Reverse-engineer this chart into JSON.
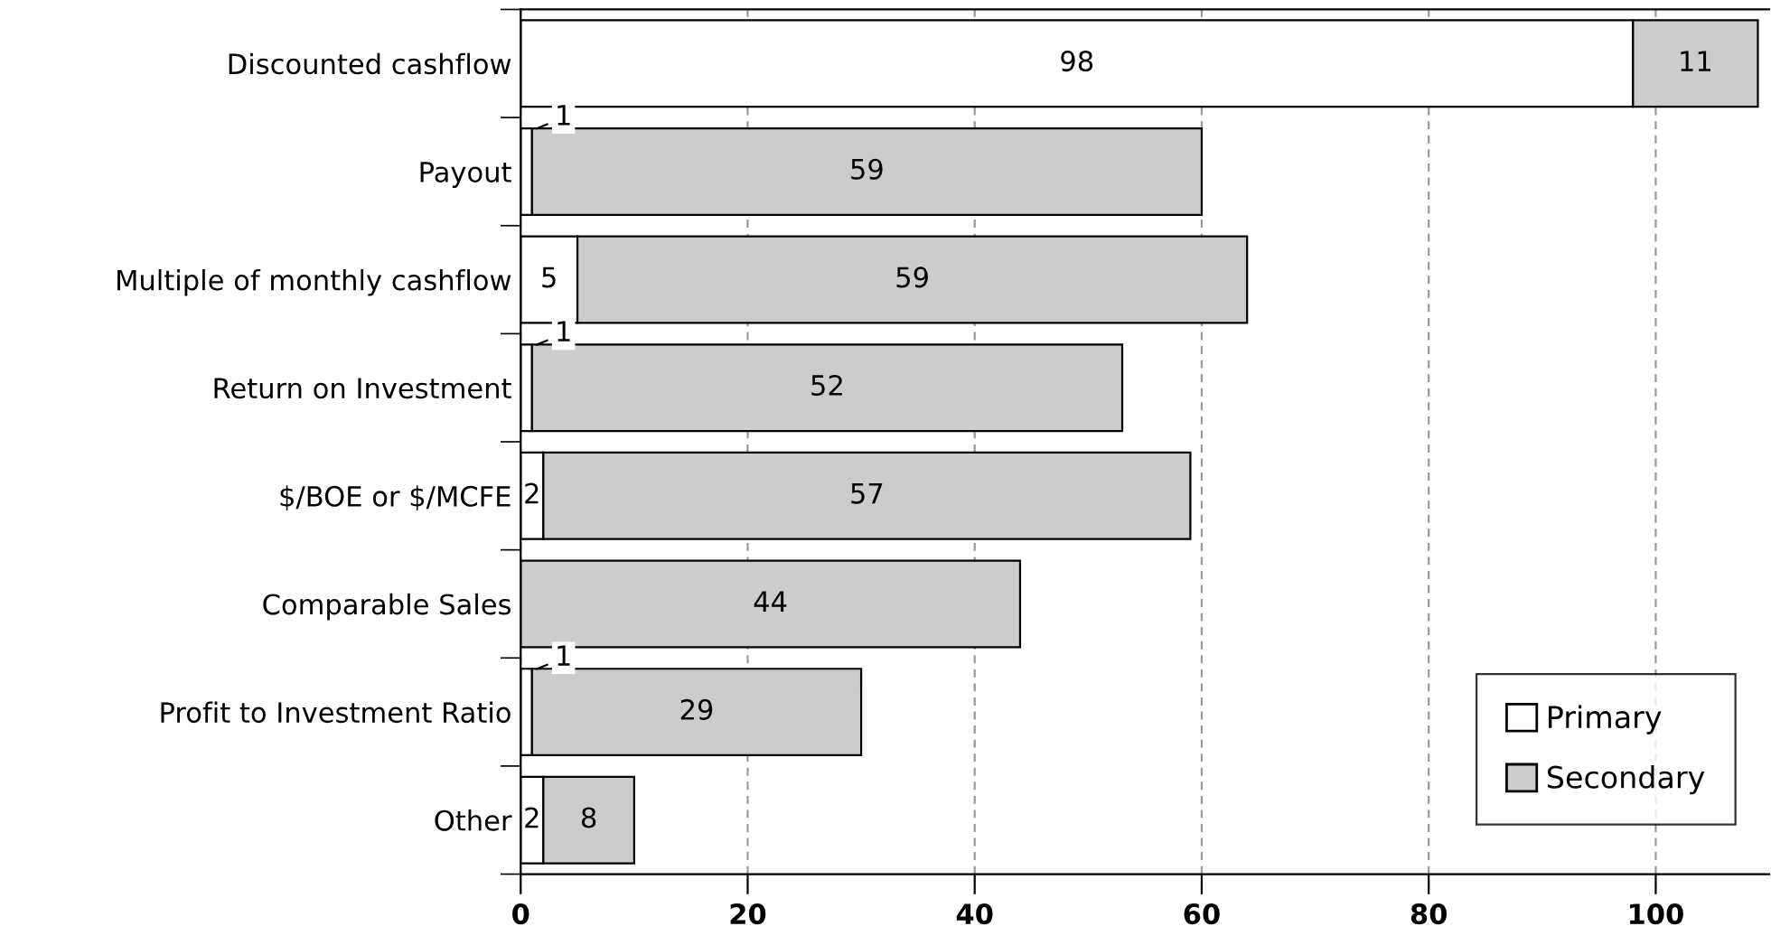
{
  "chart_data": {
    "type": "bar",
    "orientation": "horizontal",
    "stacked": true,
    "categories": [
      "Discounted cashflow",
      "Payout",
      "Multiple of monthly cashflow",
      "Return on Investment",
      "$/BOE or $/MCFE",
      "Comparable Sales",
      "Profit to Investment Ratio",
      "Other"
    ],
    "series": [
      {
        "name": "Primary",
        "color": "#ffffff",
        "values": [
          98,
          1,
          5,
          1,
          2,
          0,
          1,
          2
        ],
        "value_labels": [
          "98",
          "1",
          "5",
          "1",
          "2",
          null,
          "1",
          "2"
        ]
      },
      {
        "name": "Secondary",
        "color": "#cccccc",
        "values": [
          11,
          59,
          59,
          52,
          57,
          44,
          29,
          8
        ],
        "value_labels": [
          "11",
          "59",
          "59",
          "52",
          "57",
          "44",
          "29",
          "8"
        ]
      }
    ],
    "xlim": [
      0,
      110
    ],
    "xticks": [
      0,
      20,
      40,
      60,
      80,
      100
    ],
    "grid": "x",
    "legend": "bottom right"
  }
}
